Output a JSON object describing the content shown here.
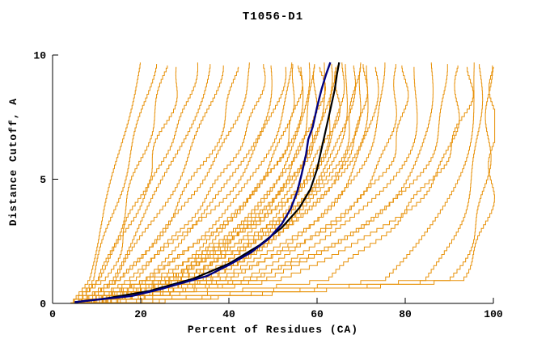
{
  "window": {
    "background": "#ffffff"
  },
  "chart_data": {
    "type": "line",
    "title": "T1056-D1",
    "xlabel": "Percent of Residues (CA)",
    "ylabel": "Distance Cutoff, A",
    "xlim": [
      0,
      100
    ],
    "ylim": [
      0,
      10
    ],
    "xticks": [
      0,
      20,
      40,
      60,
      80,
      100
    ],
    "yticks": [
      0,
      5,
      10
    ],
    "grid": false,
    "legend": "none",
    "axis_color": "#000000",
    "model_color": "#e8920a",
    "curve_top_y": 9.7,
    "model_curve_format": "[x_at_cutoff0, x_at_cutoff1, x_at_top, shape_q]",
    "model_curves": [
      [
        4,
        8,
        20,
        1.0
      ],
      [
        4,
        9,
        23,
        1.1
      ],
      [
        5,
        11,
        26,
        1.1
      ],
      [
        5,
        12,
        29,
        1.2
      ],
      [
        4,
        10,
        33,
        1.3
      ],
      [
        5,
        13,
        36,
        1.2
      ],
      [
        5,
        14,
        38,
        1.4
      ],
      [
        6,
        16,
        42,
        1.5
      ],
      [
        5,
        15,
        45,
        1.6
      ],
      [
        6,
        18,
        48,
        1.7
      ],
      [
        7,
        20,
        50,
        1.8
      ],
      [
        6,
        17,
        52,
        1.9
      ],
      [
        6,
        22,
        54,
        2.0
      ],
      [
        7,
        24,
        55,
        2.2
      ],
      [
        6,
        20,
        56,
        2.4
      ],
      [
        8,
        26,
        57,
        2.0
      ],
      [
        7,
        28,
        58,
        2.3
      ],
      [
        6,
        23,
        59,
        2.5
      ],
      [
        8,
        30,
        60,
        2.2
      ],
      [
        7,
        25,
        61,
        2.6
      ],
      [
        6,
        27,
        62,
        2.4
      ],
      [
        8,
        32,
        63,
        2.1
      ],
      [
        7,
        29,
        64,
        2.7
      ],
      [
        6,
        24,
        65,
        2.5
      ],
      [
        8,
        34,
        66,
        2.3
      ],
      [
        7,
        31,
        67,
        2.8
      ],
      [
        6,
        26,
        68,
        2.6
      ],
      [
        8,
        36,
        69,
        2.4
      ],
      [
        7,
        33,
        70,
        2.9
      ],
      [
        8,
        28,
        71,
        2.7
      ],
      [
        7,
        35,
        72,
        2.5
      ],
      [
        8,
        38,
        73,
        2.8
      ],
      [
        8,
        40,
        75,
        2.6
      ],
      [
        9,
        42,
        78,
        2.9
      ],
      [
        8,
        38,
        80,
        3.0
      ],
      [
        9,
        45,
        83,
        2.8
      ],
      [
        8,
        48,
        86,
        3.1
      ],
      [
        9,
        44,
        89,
        3.0
      ],
      [
        10,
        50,
        92,
        3.2
      ],
      [
        10,
        62,
        95,
        2.0
      ],
      [
        9,
        75,
        96,
        2.6
      ],
      [
        10,
        85,
        97,
        3.0
      ],
      [
        11,
        90,
        99,
        4.0
      ],
      [
        12,
        92,
        100,
        5.0
      ]
    ],
    "reference_curves": [
      {
        "name": "black-reference-curve",
        "color": "#000000",
        "width": 2.2,
        "points": [
          [
            5,
            0.05
          ],
          [
            12,
            0.2
          ],
          [
            22,
            0.5
          ],
          [
            32,
            1.0
          ],
          [
            40,
            1.6
          ],
          [
            47,
            2.35
          ],
          [
            52,
            3.05
          ],
          [
            56,
            3.85
          ],
          [
            58.5,
            4.6
          ],
          [
            60,
            5.4
          ],
          [
            61,
            6.2
          ],
          [
            62,
            7.0
          ],
          [
            63,
            7.8
          ],
          [
            64,
            8.6
          ],
          [
            64.5,
            9.2
          ],
          [
            65,
            9.7
          ]
        ]
      },
      {
        "name": "navy-reference-curve",
        "color": "#000080",
        "width": 2.4,
        "points": [
          [
            5,
            0.05
          ],
          [
            10,
            0.15
          ],
          [
            18,
            0.3
          ],
          [
            24,
            0.55
          ],
          [
            30,
            0.85
          ],
          [
            35,
            1.1
          ],
          [
            40,
            1.55
          ],
          [
            45,
            2.05
          ],
          [
            49,
            2.6
          ],
          [
            52,
            3.2
          ],
          [
            54,
            3.8
          ],
          [
            55.5,
            4.5
          ],
          [
            56.5,
            5.2
          ],
          [
            57.5,
            6.0
          ],
          [
            58,
            6.6
          ],
          [
            59,
            7.1
          ],
          [
            60,
            7.9
          ],
          [
            61,
            8.6
          ],
          [
            62,
            9.2
          ],
          [
            63,
            9.7
          ]
        ]
      }
    ]
  }
}
